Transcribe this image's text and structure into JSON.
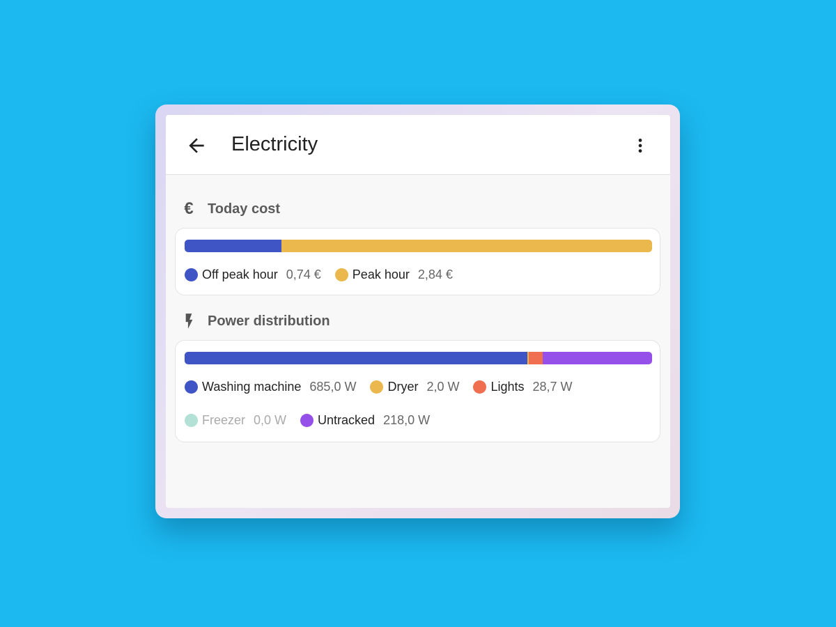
{
  "header": {
    "title": "Electricity",
    "back_icon": "arrow-left-icon",
    "menu_icon": "dots-vertical-icon"
  },
  "cost": {
    "title": "Today cost",
    "icon": "euro-icon",
    "items": [
      {
        "label": "Off peak hour",
        "value": "0,74 €",
        "amount": 0.74,
        "color": "#4055c5"
      },
      {
        "label": "Peak hour",
        "value": "2,84 €",
        "amount": 2.84,
        "color": "#ebb84d"
      }
    ]
  },
  "power": {
    "title": "Power distribution",
    "icon": "flash-icon",
    "items": [
      {
        "label": "Washing machine",
        "value": "685,0 W",
        "amount": 685.0,
        "color": "#4055c5"
      },
      {
        "label": "Dryer",
        "value": "2,0 W",
        "amount": 2.0,
        "color": "#ebb84d"
      },
      {
        "label": "Lights",
        "value": "28,7 W",
        "amount": 28.7,
        "color": "#ef6f50"
      },
      {
        "label": "Freezer",
        "value": "0,0 W",
        "amount": 0.0,
        "color": "#b3e1d5",
        "dimmed": true
      },
      {
        "label": "Untracked",
        "value": "218,0 W",
        "amount": 218.0,
        "color": "#9650ea"
      }
    ]
  }
}
